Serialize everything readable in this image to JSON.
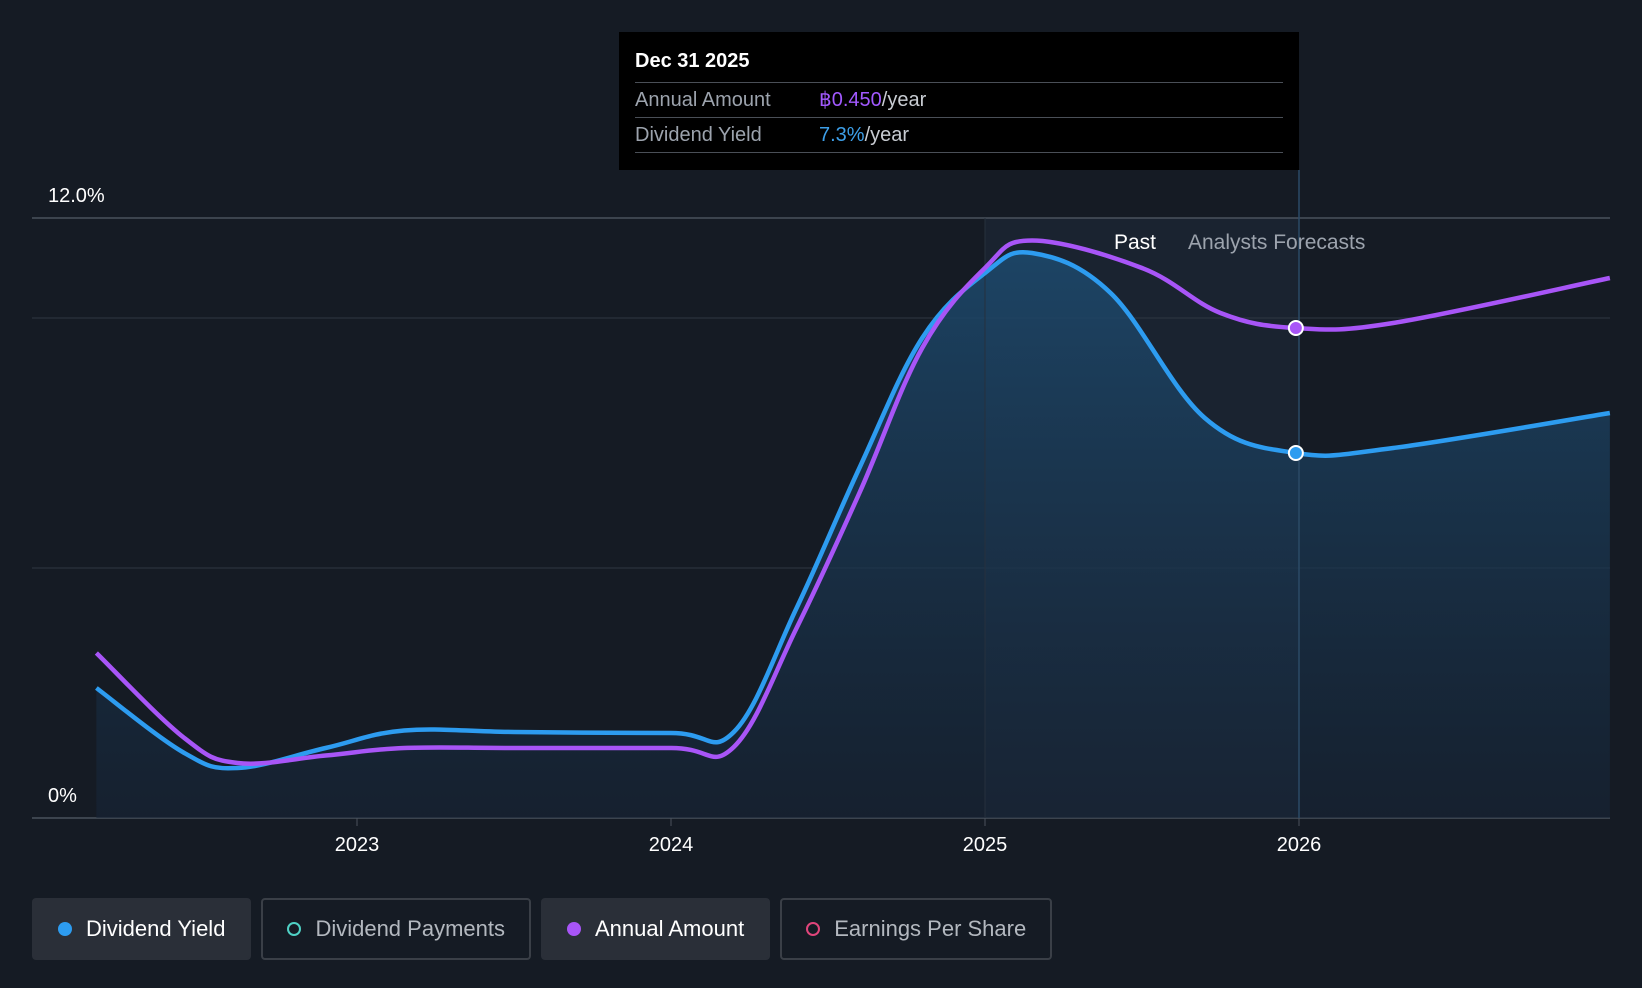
{
  "tooltip": {
    "date": "Dec 31 2025",
    "rows": [
      {
        "key": "Annual Amount",
        "value": "฿0.450",
        "unit": "/year"
      },
      {
        "key": "Dividend Yield",
        "value": "7.3%",
        "unit": "/year"
      }
    ]
  },
  "legend": [
    {
      "label": "Dividend Yield",
      "color": "#2d9cf0",
      "active": true
    },
    {
      "label": "Dividend Payments",
      "color": "#4fd1c5",
      "active": false
    },
    {
      "label": "Annual Amount",
      "color": "#a855f7",
      "active": true
    },
    {
      "label": "Earnings Per Share",
      "color": "#e0457b",
      "active": false
    }
  ],
  "chart_data": {
    "type": "line",
    "ylim": [
      0,
      12
    ],
    "y_tick_labels": [
      "12.0%",
      "0%"
    ],
    "x_tick_labels": [
      "2023",
      "2024",
      "2025",
      "2026"
    ],
    "x_ticks": [
      2023,
      2024,
      2025,
      2026
    ],
    "xlim": [
      2022.0,
      2026.99
    ],
    "past_label": "Past",
    "forecast_label": "Analysts Forecasts",
    "past_region_start": 2025.0,
    "forecast_start": 2026.0,
    "grid": true,
    "series": [
      {
        "name": "Dividend Yield",
        "color": "#2d9cf0",
        "unit": "%",
        "points": [
          [
            2022.17,
            2.6
          ],
          [
            2022.45,
            1.3
          ],
          [
            2022.62,
            1.0
          ],
          [
            2022.9,
            1.4
          ],
          [
            2023.15,
            1.75
          ],
          [
            2023.5,
            1.72
          ],
          [
            2024.0,
            1.7
          ],
          [
            2024.2,
            1.72
          ],
          [
            2024.4,
            4.2
          ],
          [
            2024.6,
            7.0
          ],
          [
            2024.8,
            9.6
          ],
          [
            2025.0,
            10.9
          ],
          [
            2025.15,
            11.3
          ],
          [
            2025.4,
            10.5
          ],
          [
            2025.7,
            8.0
          ],
          [
            2025.99,
            7.3
          ],
          [
            2026.3,
            7.4
          ],
          [
            2026.99,
            8.1
          ]
        ]
      },
      {
        "name": "Annual Amount",
        "color": "#a855f7",
        "unit": "฿",
        "points": [
          [
            2022.17,
            3.3
          ],
          [
            2022.45,
            1.6
          ],
          [
            2022.62,
            1.1
          ],
          [
            2022.9,
            1.25
          ],
          [
            2023.15,
            1.4
          ],
          [
            2023.5,
            1.4
          ],
          [
            2024.0,
            1.4
          ],
          [
            2024.2,
            1.42
          ],
          [
            2024.4,
            3.8
          ],
          [
            2024.6,
            6.5
          ],
          [
            2024.8,
            9.4
          ],
          [
            2025.0,
            11.0
          ],
          [
            2025.15,
            11.55
          ],
          [
            2025.5,
            11.0
          ],
          [
            2025.75,
            10.1
          ],
          [
            2025.99,
            9.8
          ],
          [
            2026.3,
            9.9
          ],
          [
            2026.99,
            10.8
          ]
        ]
      }
    ]
  }
}
